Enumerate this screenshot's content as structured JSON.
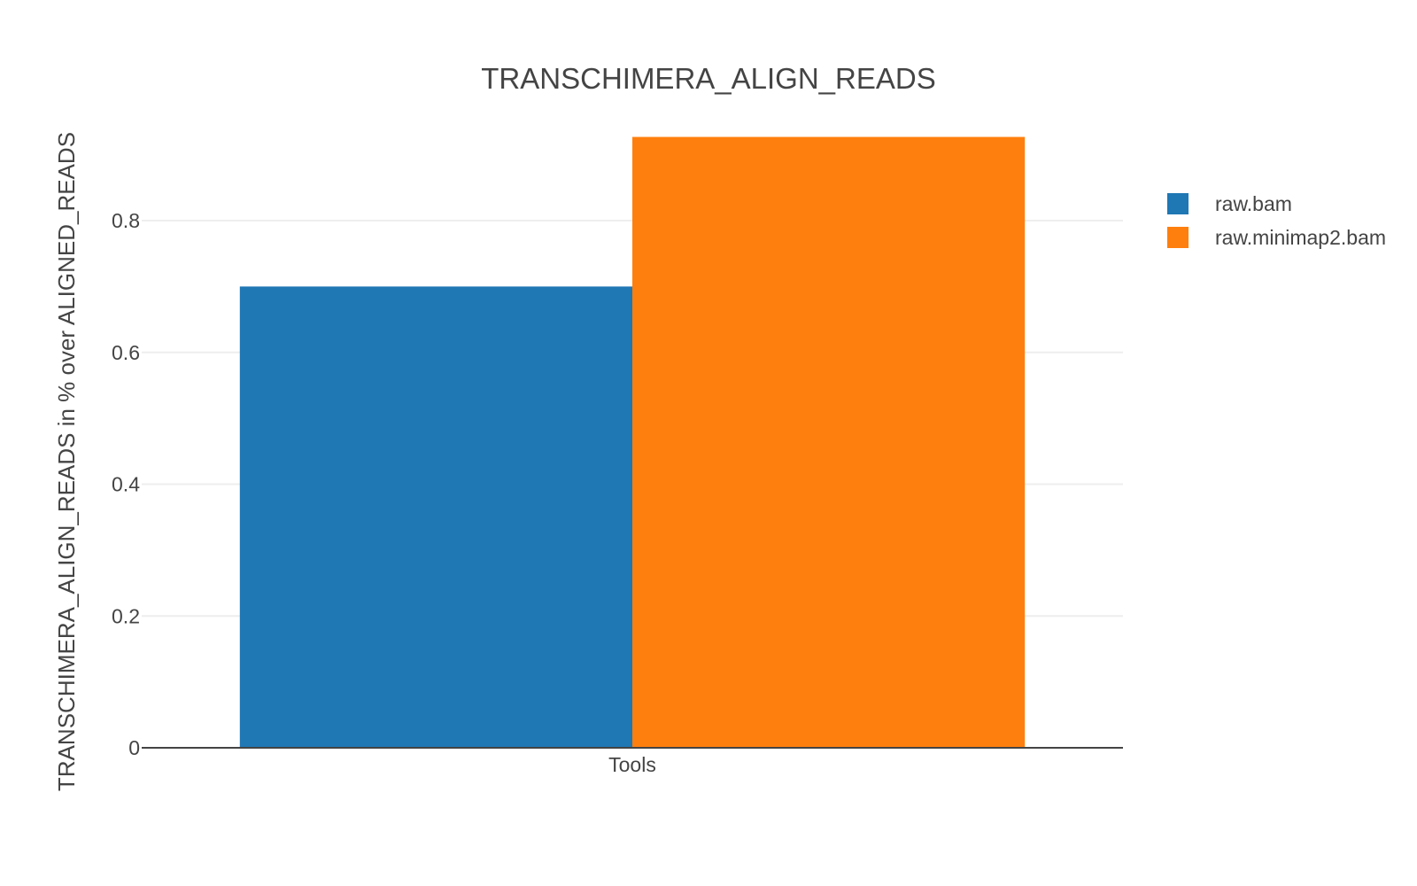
{
  "chart_data": {
    "type": "bar",
    "title": "TRANSCHIMERA_ALIGN_READS",
    "xlabel": "",
    "ylabel": "TRANSCHIMERA_ALIGN_READS in % over ALIGNED_READS",
    "categories": [
      "Tools"
    ],
    "series": [
      {
        "name": "raw.bam",
        "values": [
          0.7
        ],
        "color": "#1f77b4"
      },
      {
        "name": "raw.minimap2.bam",
        "values": [
          0.927
        ],
        "color": "#ff7f0e"
      }
    ],
    "ylim": [
      0,
      0.96
    ],
    "yticks": [
      0,
      0.2,
      0.4,
      0.6,
      0.8
    ],
    "ytick_labels": [
      "0",
      "0.2",
      "0.4",
      "0.6",
      "0.8"
    ],
    "grid": true,
    "legend_position": "top-right"
  }
}
